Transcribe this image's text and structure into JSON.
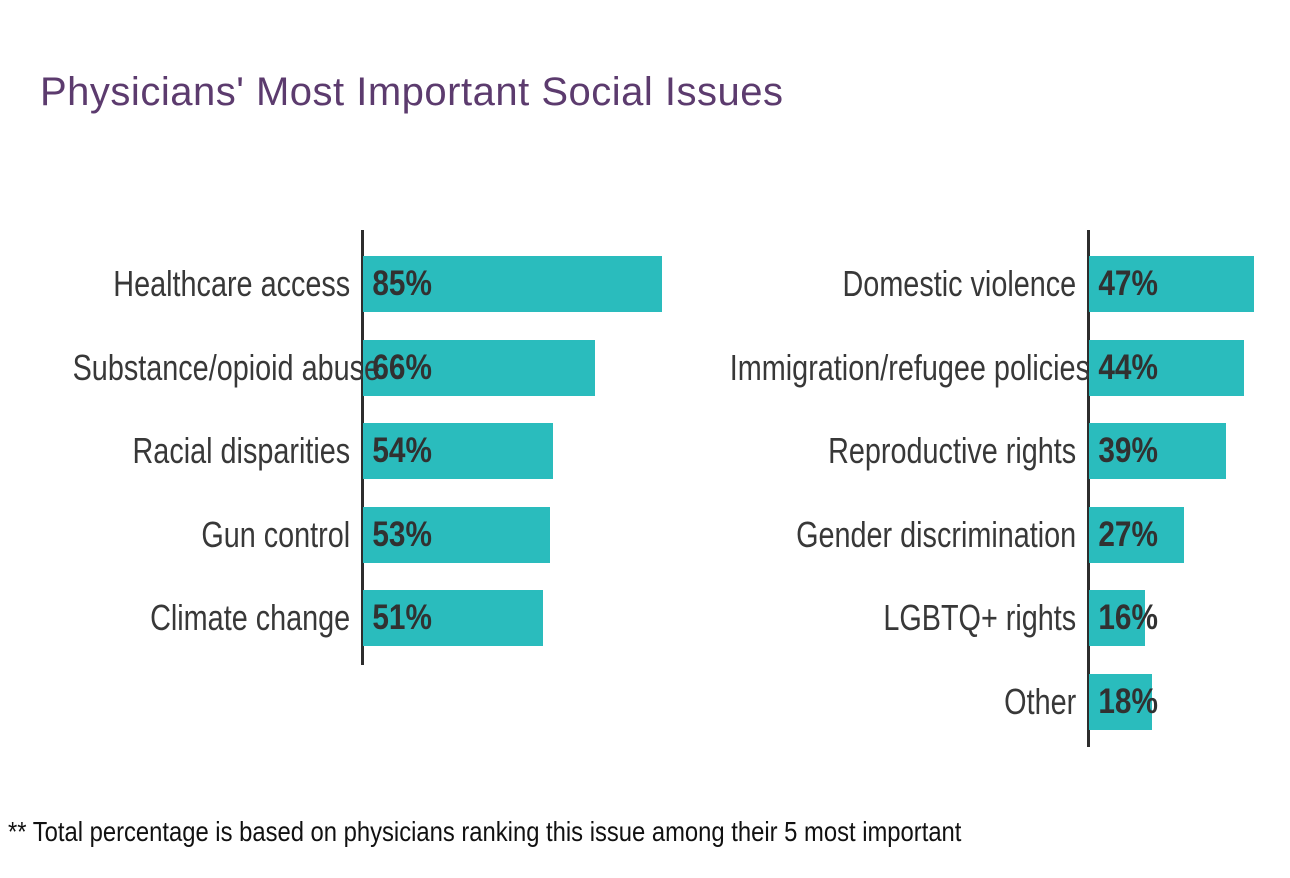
{
  "title": "Physicians' Most Important Social Issues",
  "footnote": "** Total percentage is based on physicians ranking this issue among their 5 most important",
  "colors": {
    "bar": "#2abcbd",
    "title": "#5c3b6e",
    "label": "#383838",
    "value": "#313131",
    "axis": "#2d2d2d",
    "footnote": "#111111"
  },
  "chart_data": {
    "type": "bar",
    "orientation": "horizontal",
    "title": "Physicians' Most Important Social Issues",
    "unit": "%",
    "xlim": [
      0,
      100
    ],
    "grid": false,
    "legend": false,
    "value_label_position": "inside-left",
    "panels": [
      {
        "name": "left",
        "items": [
          {
            "category": "Healthcare access",
            "value": 85,
            "display": "85%"
          },
          {
            "category": "Substance/opioid abuse",
            "value": 66,
            "display": "66%"
          },
          {
            "category": "Racial disparities",
            "value": 54,
            "display": "54%"
          },
          {
            "category": "Gun control",
            "value": 53,
            "display": "53%"
          },
          {
            "category": "Climate change",
            "value": 51,
            "display": "51%"
          }
        ]
      },
      {
        "name": "right",
        "items": [
          {
            "category": "Domestic violence",
            "value": 47,
            "display": "47%"
          },
          {
            "category": "Immigration/refugee policies",
            "value": 44,
            "display": "44%"
          },
          {
            "category": "Reproductive rights",
            "value": 39,
            "display": "39%"
          },
          {
            "category": "Gender discrimination",
            "value": 27,
            "display": "27%"
          },
          {
            "category": "LGBTQ+ rights",
            "value": 16,
            "display": "16%"
          },
          {
            "category": "Other",
            "value": 18,
            "display": "18%"
          }
        ]
      }
    ],
    "footnote": "** Total percentage is based on physicians ranking this issue among their 5 most important"
  }
}
